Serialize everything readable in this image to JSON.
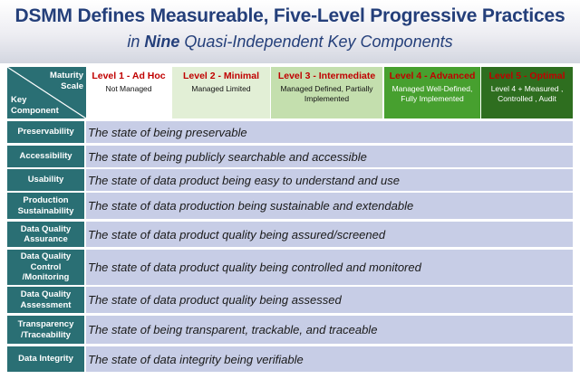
{
  "header": {
    "title": "DSMM Defines Measureable, Five-Level Progressive Practices",
    "subtitle_pre": "in ",
    "subtitle_bold": "Nine",
    "subtitle_post": " Quasi-Independent Key Components"
  },
  "corner": {
    "scale_label": "Maturity Scale",
    "component_label": "Key Component"
  },
  "levels": [
    {
      "name": "Level 1 - Ad Hoc",
      "desc": "Not Managed"
    },
    {
      "name": "Level 2 - Minimal",
      "desc": "Managed Limited"
    },
    {
      "name": "Level 3 - Intermediate",
      "desc": "Managed Defined, Partially Implemented"
    },
    {
      "name": "Level 4 - Advanced",
      "desc": "Managed Well-Defined, Fully Implemented"
    },
    {
      "name": "Level 5 - Optimal",
      "desc": "Level 4 + Measured , Controlled , Audit"
    }
  ],
  "components": [
    {
      "name": "Preservability",
      "desc": "The state of being preservable"
    },
    {
      "name": "Accessibility",
      "desc": "The state of being publicly searchable and accessible"
    },
    {
      "name": "Usability",
      "desc": "The state of data product being easy to understand and use"
    },
    {
      "name": "Production Sustainability",
      "desc": "The state of data production being sustainable and extendable"
    },
    {
      "name": "Data Quality Assurance",
      "desc": "The state of data product quality being assured/screened"
    },
    {
      "name": "Data Quality Control /Monitoring",
      "desc": "The state of data product quality being controlled and monitored"
    },
    {
      "name": "Data Quality Assessment",
      "desc": "The state of data product quality being assessed"
    },
    {
      "name": "Transparency /Traceability",
      "desc": "The state of being transparent, trackable, and traceable"
    },
    {
      "name": "Data Integrity",
      "desc": "The state of  data integrity being verifiable"
    }
  ]
}
